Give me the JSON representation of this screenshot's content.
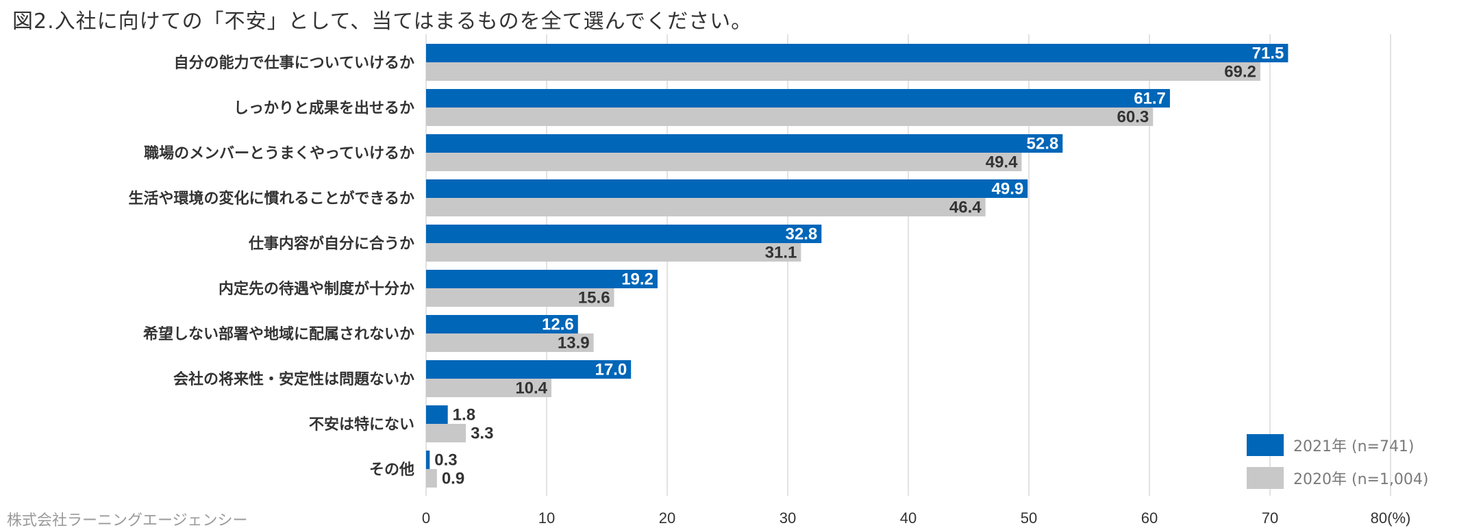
{
  "title": "図2.入社に向けての「不安」として、当てはまるものを全て選んでください。",
  "source": "株式会社ラーニングエージェンシー",
  "colors": {
    "series_2021": "#0066b8",
    "series_2020": "#c8c8c8",
    "grid": "#d9d9d9"
  },
  "chart_data": {
    "type": "bar",
    "orientation": "horizontal",
    "title": "図2.入社に向けての「不安」として、当てはまるものを全て選んでください。",
    "categories": [
      "自分の能力で仕事についていけるか",
      "しっかりと成果を出せるか",
      "職場のメンバーとうまくやっていけるか",
      "生活や環境の変化に慣れることができるか",
      "仕事内容が自分に合うか",
      "内定先の待遇や制度が十分か",
      "希望しない部署や地域に配属されないか",
      "会社の将来性・安定性は問題ないか",
      "不安は特にない",
      "その他"
    ],
    "series": [
      {
        "name": "2021年 (n=741)",
        "values": [
          71.5,
          61.7,
          52.8,
          49.9,
          32.8,
          19.2,
          12.6,
          17.0,
          1.8,
          0.3
        ]
      },
      {
        "name": "2020年 (n=1,004)",
        "values": [
          69.2,
          60.3,
          49.4,
          46.4,
          31.1,
          15.6,
          13.9,
          10.4,
          3.3,
          0.9
        ]
      }
    ],
    "xlim": [
      0,
      80
    ],
    "ticks": [
      0,
      10,
      20,
      30,
      40,
      50,
      60,
      70,
      80
    ],
    "tick_labels": [
      "0",
      "10",
      "20",
      "30",
      "40",
      "50",
      "60",
      "70",
      "80(%)"
    ],
    "xlabel": "",
    "ylabel": "",
    "grid": true,
    "legend_position": "bottom-right"
  },
  "legend": {
    "items": [
      {
        "label": "2021年 (n=741)"
      },
      {
        "label": "2020年 (n=1,004)"
      }
    ]
  }
}
